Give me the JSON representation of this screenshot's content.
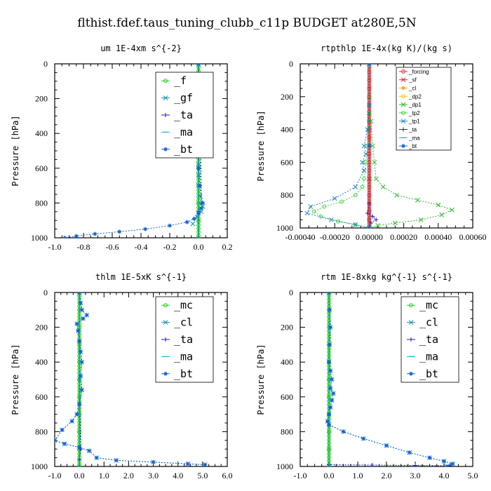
{
  "figure_title": "flthist.fdef.taus_tuning_clubb_c11p  BUDGET at280E,5N",
  "chart_data": [
    {
      "type": "line",
      "title": "um  1E-4xm s^{-2}",
      "ylabel": "Pressure [hPa]",
      "xlim": [
        -1.0,
        0.2
      ],
      "ylim": [
        1000,
        0
      ],
      "xticks": [
        "-1.0",
        "-0.8",
        "-0.6",
        "-0.4",
        "-0.2",
        "0.0",
        "0.2"
      ],
      "xtick_values": [
        -1.0,
        -0.8,
        -0.6,
        -0.4,
        -0.2,
        0.0,
        0.2
      ],
      "yticks": [
        "0",
        "200",
        "400",
        "600",
        "800",
        "1000"
      ],
      "ytick_values": [
        0,
        200,
        400,
        600,
        800,
        1000
      ],
      "legend_style": "large",
      "series": [
        {
          "name": "_f",
          "color": "#22cc22",
          "marker": "circle",
          "x": [
            0,
            0,
            0,
            0,
            0,
            0,
            0,
            0,
            0,
            0,
            0
          ],
          "y": [
            0,
            100,
            200,
            300,
            400,
            500,
            600,
            700,
            800,
            900,
            1000
          ]
        },
        {
          "name": "_gf",
          "color": "#1a8fb5",
          "marker": "x",
          "x": [
            0,
            0,
            0.01,
            0.02,
            0.03,
            0.02,
            0.01,
            0,
            0,
            0,
            0,
            0,
            0,
            0,
            0,
            0,
            0.01,
            0.03,
            0.02,
            -0.01,
            -0.04
          ],
          "y": [
            0,
            60,
            100,
            130,
            150,
            170,
            190,
            220,
            280,
            340,
            400,
            460,
            520,
            580,
            640,
            700,
            760,
            820,
            850,
            880,
            920
          ]
        },
        {
          "name": "_ta",
          "color": "#1a1acc",
          "marker": "plus",
          "x": [
            0,
            0.01,
            0.02,
            0,
            0
          ],
          "y": [
            0,
            150,
            800,
            850,
            1000
          ]
        },
        {
          "name": "_ma",
          "color": "#18b0c8",
          "marker": "dash",
          "x": [
            0,
            0,
            0
          ],
          "y": [
            0,
            500,
            1000
          ]
        },
        {
          "name": "_bt",
          "color": "#1060d8",
          "marker": "star",
          "x": [
            0,
            0,
            0.01,
            0.02,
            0.02,
            0.01,
            0,
            0,
            0,
            0,
            0,
            0,
            0.01,
            0.03,
            0.02,
            0,
            -0.03,
            -0.08,
            -0.2,
            -0.37,
            -0.55,
            -0.72,
            -0.85,
            -0.93
          ],
          "y": [
            0,
            60,
            100,
            130,
            150,
            180,
            220,
            280,
            340,
            400,
            500,
            600,
            700,
            800,
            830,
            860,
            890,
            910,
            930,
            950,
            965,
            978,
            990,
            1000
          ]
        }
      ]
    },
    {
      "type": "line",
      "title": "rtpthlp  1E-4x(kg K)/(kg s)",
      "ylabel": "Pressure [hPa]",
      "xlim": [
        -0.0004,
        0.0006
      ],
      "ylim": [
        1000,
        0
      ],
      "xticks": [
        "-0.00040",
        "-0.00020",
        "0.00000",
        "0.00020",
        "0.00040",
        "0.00060"
      ],
      "xtick_values": [
        -0.0004,
        -0.0002,
        0.0,
        0.0002,
        0.0004,
        0.0006
      ],
      "yticks": [
        "0",
        "200",
        "400",
        "600",
        "800",
        "1000"
      ],
      "ytick_values": [
        0,
        200,
        400,
        600,
        800,
        1000
      ],
      "legend_style": "small",
      "series": [
        {
          "name": "_forcing",
          "color": "#e03030",
          "marker": "circle",
          "x": [
            0,
            0,
            0,
            0,
            0,
            0,
            0,
            0,
            0,
            0,
            0,
            0,
            0,
            0,
            0,
            0,
            0,
            0,
            0,
            0,
            0
          ],
          "y": [
            0,
            50,
            100,
            150,
            200,
            250,
            300,
            350,
            400,
            450,
            500,
            550,
            600,
            650,
            700,
            750,
            800,
            850,
            900,
            950,
            1000
          ]
        },
        {
          "name": "_sf",
          "color": "#e82020",
          "marker": "x",
          "x": [
            0,
            0,
            0,
            0
          ],
          "y": [
            0,
            300,
            700,
            1000
          ]
        },
        {
          "name": "_cl",
          "color": "#f0a020",
          "marker": "star",
          "x": [
            0,
            0
          ],
          "y": [
            0,
            1000
          ]
        },
        {
          "name": "_dp2",
          "color": "#f0c020",
          "marker": "circle",
          "x": [
            0,
            0
          ],
          "y": [
            0,
            1000
          ]
        },
        {
          "name": "_dp1",
          "color": "#30b830",
          "marker": "x",
          "x": [
            0,
            0,
            1e-05,
            2e-05,
            3e-05,
            4e-05,
            8e-05,
            0.00016,
            0.00028,
            0.0004,
            0.00048,
            0.00042,
            0.0003,
            0.00015,
            5e-05,
            0
          ],
          "y": [
            0,
            200,
            350,
            500,
            600,
            700,
            750,
            800,
            830,
            860,
            890,
            920,
            950,
            970,
            985,
            1000
          ]
        },
        {
          "name": "_tp2",
          "color": "#40d040",
          "marker": "circle",
          "x": [
            0,
            0,
            -1e-05,
            -2e-05,
            -3e-05,
            -4e-05,
            -8e-05,
            -0.00016,
            -0.00026,
            -0.00032,
            -0.00028,
            -0.00018,
            -8e-05,
            0
          ],
          "y": [
            0,
            300,
            500,
            600,
            700,
            750,
            800,
            840,
            870,
            900,
            930,
            960,
            980,
            1000
          ]
        },
        {
          "name": "_tp1",
          "color": "#2080c0",
          "marker": "x",
          "x": [
            0,
            0,
            -1e-05,
            -3e-05,
            -2e-05,
            -4e-05,
            -3e-05,
            -8e-05,
            -0.0002,
            -0.00034,
            -0.00036,
            -0.00022,
            -8e-05,
            0
          ],
          "y": [
            0,
            250,
            400,
            500,
            550,
            600,
            650,
            750,
            820,
            870,
            910,
            950,
            980,
            1000
          ]
        },
        {
          "name": "_ta",
          "color": "#2020c0",
          "marker": "plus",
          "x": [
            0,
            0,
            -1e-05,
            2e-05,
            4e-05,
            1e-05,
            0
          ],
          "y": [
            0,
            850,
            910,
            930,
            950,
            970,
            1000
          ]
        },
        {
          "name": "_ma",
          "color": "#20b0c8",
          "marker": "dash",
          "x": [
            0,
            0
          ],
          "y": [
            0,
            1000
          ]
        },
        {
          "name": "_bt",
          "color": "#1060d8",
          "marker": "star",
          "x": [
            0,
            0,
            0
          ],
          "y": [
            0,
            500,
            1000
          ]
        }
      ]
    },
    {
      "type": "line",
      "title": "thlm  1E-5xK s^{-1}",
      "ylabel": "Pressure [hPa]",
      "xlim": [
        -1.0,
        6.0
      ],
      "ylim": [
        1000,
        0
      ],
      "xticks": [
        "-1.0",
        "0.0",
        "1.0",
        "2.0",
        "3.0",
        "4.0",
        "5.0",
        "6.0"
      ],
      "xtick_values": [
        -1.0,
        0.0,
        1.0,
        2.0,
        3.0,
        4.0,
        5.0,
        6.0
      ],
      "yticks": [
        "0",
        "200",
        "400",
        "600",
        "800",
        "1000"
      ],
      "ytick_values": [
        0,
        200,
        400,
        600,
        800,
        1000
      ],
      "legend_style": "large",
      "series": [
        {
          "name": "_mc",
          "color": "#22cc22",
          "marker": "circle",
          "x": [
            0,
            0,
            0,
            0,
            0,
            0,
            0,
            0,
            0,
            0,
            0
          ],
          "y": [
            0,
            100,
            200,
            300,
            400,
            500,
            600,
            700,
            800,
            900,
            1000
          ]
        },
        {
          "name": "_cl",
          "color": "#1a8fb5",
          "marker": "x",
          "x": [
            0,
            0.05,
            0.1,
            0.3,
            0.15,
            -0.1,
            -0.05,
            0,
            0.05,
            0.1,
            0.05,
            0.1,
            0,
            -0.1,
            -0.3,
            -0.7,
            -1.0,
            -0.6,
            0,
            0.4,
            0.7,
            1.5,
            3.0,
            4.4,
            5.1
          ],
          "y": [
            0,
            60,
            100,
            130,
            150,
            180,
            220,
            280,
            340,
            400,
            480,
            560,
            640,
            700,
            740,
            790,
            850,
            870,
            890,
            910,
            950,
            965,
            975,
            985,
            990
          ]
        },
        {
          "name": "_ta",
          "color": "#1a1acc",
          "marker": "plus",
          "x": [
            0,
            0,
            0.05,
            0,
            0
          ],
          "y": [
            0,
            500,
            900,
            960,
            1000
          ]
        },
        {
          "name": "_ma",
          "color": "#18b0c8",
          "marker": "dash",
          "x": [
            0,
            0,
            0
          ],
          "y": [
            0,
            500,
            1000
          ]
        },
        {
          "name": "_bt",
          "color": "#1060d8",
          "marker": "star",
          "x": [
            0,
            0.05,
            0.1,
            0.3,
            0.15,
            -0.1,
            -0.05,
            0,
            0.05,
            0.1,
            0.05,
            0.1,
            0,
            -0.1,
            -0.3,
            -0.7,
            -1.0,
            -0.6,
            0,
            0.4,
            0.7,
            1.5,
            3.0,
            4.4,
            5.1
          ],
          "y": [
            0,
            60,
            100,
            130,
            150,
            180,
            220,
            280,
            340,
            400,
            480,
            560,
            640,
            700,
            740,
            790,
            850,
            870,
            890,
            910,
            950,
            965,
            975,
            985,
            990
          ]
        }
      ]
    },
    {
      "type": "line",
      "title": "rtm  1E-8xkg kg^{-1} s^{-1}",
      "ylabel": "Pressure [hPa]",
      "xlim": [
        -1.0,
        5.0
      ],
      "ylim": [
        1000,
        0
      ],
      "xticks": [
        "-1.0",
        "0.0",
        "1.0",
        "2.0",
        "3.0",
        "4.0",
        "5.0"
      ],
      "xtick_values": [
        -1.0,
        0.0,
        1.0,
        2.0,
        3.0,
        4.0,
        5.0
      ],
      "yticks": [
        "0",
        "200",
        "400",
        "600",
        "800",
        "1000"
      ],
      "ytick_values": [
        0,
        200,
        400,
        600,
        800,
        1000
      ],
      "legend_style": "large",
      "series": [
        {
          "name": "_mc",
          "color": "#22cc22",
          "marker": "circle",
          "x": [
            0,
            0,
            0,
            0,
            0,
            0,
            0,
            0,
            0,
            0,
            0
          ],
          "y": [
            0,
            100,
            200,
            300,
            400,
            500,
            600,
            700,
            800,
            900,
            1000
          ]
        },
        {
          "name": "_cl",
          "color": "#1a8fb5",
          "marker": "x",
          "x": [
            0,
            0.02,
            0.05,
            0.02,
            0,
            0.05,
            0.1,
            0.05,
            0.15,
            0.1,
            0.05,
            0,
            -0.05,
            0,
            0.5,
            1.2,
            2.0,
            2.8,
            3.5,
            4.0,
            4.3,
            4.1
          ],
          "y": [
            0,
            100,
            200,
            300,
            400,
            450,
            500,
            550,
            580,
            620,
            660,
            700,
            740,
            760,
            800,
            840,
            880,
            920,
            950,
            970,
            985,
            1000
          ]
        },
        {
          "name": "_ta",
          "color": "#1a1acc",
          "marker": "plus",
          "x": [
            0,
            0,
            1.5,
            3.0,
            4.2
          ],
          "y": [
            0,
            990,
            992,
            994,
            996
          ]
        },
        {
          "name": "_ma",
          "color": "#18b0c8",
          "marker": "dash",
          "x": [
            0,
            0,
            0
          ],
          "y": [
            0,
            500,
            1000
          ]
        },
        {
          "name": "_bt",
          "color": "#1060d8",
          "marker": "star",
          "x": [
            0,
            0.02,
            0.05,
            0.02,
            0,
            0.05,
            0.1,
            0.05,
            0.15,
            0.1,
            0.05,
            0,
            -0.05,
            0,
            0.5,
            1.2,
            2.0,
            2.8,
            3.5,
            4.0,
            4.3,
            4.1
          ],
          "y": [
            0,
            100,
            200,
            300,
            400,
            450,
            500,
            550,
            580,
            620,
            660,
            700,
            740,
            760,
            800,
            840,
            880,
            920,
            950,
            970,
            985,
            1000
          ]
        }
      ]
    }
  ]
}
